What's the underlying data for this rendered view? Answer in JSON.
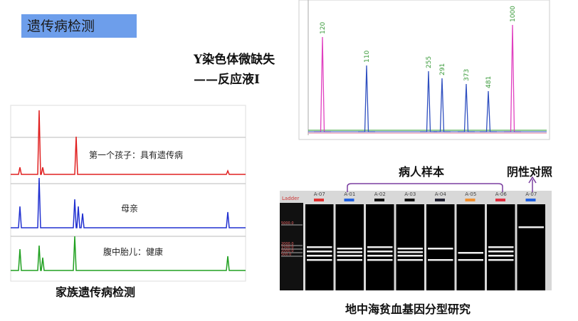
{
  "title": "遗传病检测",
  "y_chromosome": {
    "line1": "Y染色体微缺失",
    "line2": "——反应液I",
    "peaks": [
      "120",
      "110",
      "255",
      "291",
      "373",
      "481",
      "1000"
    ]
  },
  "family": {
    "caption": "家族遗传病检测",
    "labels": [
      "第一个孩子：具有遗传病",
      "母亲",
      "腹中胎儿：健康"
    ]
  },
  "gel": {
    "caption": "地中海贫血基因分型研究",
    "patients": "病人样本",
    "negative": "阴性对照",
    "ladder": "Ladder",
    "ladder_marks": [
      "5000.0",
      "2000.0",
      "1500.0",
      "1000.0",
      "500.0"
    ],
    "lanes": [
      "A-07",
      "A-01",
      "A-02",
      "A-03",
      "A-04",
      "A-05",
      "A-06",
      "A-07"
    ]
  }
}
